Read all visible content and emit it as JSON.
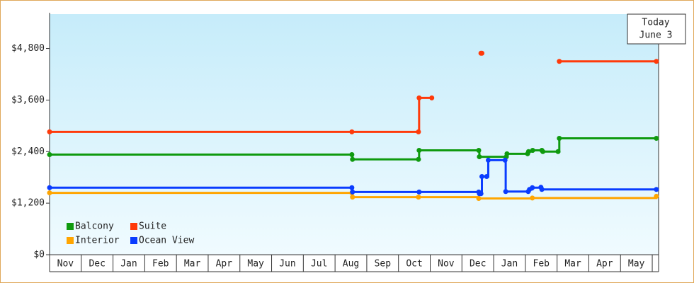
{
  "chart_data": {
    "type": "step-line",
    "categories": [
      "Nov",
      "Dec",
      "Jan",
      "Feb",
      "Mar",
      "Apr",
      "May",
      "Jun",
      "Jul",
      "Aug",
      "Sep",
      "Oct",
      "Nov",
      "Dec",
      "Jan",
      "Feb",
      "Mar",
      "Apr",
      "May"
    ],
    "xlim": [
      0,
      19.2
    ],
    "ylim": [
      0,
      5600
    ],
    "yticks": [
      {
        "value": 0,
        "label": "$0"
      },
      {
        "value": 1200,
        "label": "$1,200"
      },
      {
        "value": 2400,
        "label": "$2,400"
      },
      {
        "value": 3600,
        "label": "$3,600"
      },
      {
        "value": 4800,
        "label": "$4,800"
      }
    ],
    "annotation": [
      "Today",
      "June 3"
    ],
    "legend": "bottom-left",
    "series": [
      {
        "name": "Balcony",
        "color": "#0f9a0f",
        "x": [
          0,
          9.53,
          9.55,
          11.63,
          11.65,
          13.53,
          13.55,
          14.4,
          14.42,
          15.07,
          15.1,
          15.23,
          15.52,
          15.55,
          16.03,
          16.07,
          19.13
        ],
        "values": [
          2330,
          2330,
          2220,
          2220,
          2430,
          2430,
          2280,
          2280,
          2350,
          2350,
          2400,
          2430,
          2430,
          2400,
          2400,
          2710,
          2710
        ]
      },
      {
        "name": "Suite",
        "color": "#ff3a0a",
        "x": [
          0,
          9.53,
          11.63,
          11.65,
          12.05,
          null,
          13.6,
          13.63,
          null,
          16.07,
          19.13
        ],
        "values": [
          2860,
          2860,
          2860,
          3650,
          3650,
          null,
          4690,
          4690,
          null,
          4500,
          4500
        ]
      },
      {
        "name": "Interior",
        "color": "#ffa500",
        "x": [
          0,
          9.53,
          9.55,
          11.63,
          13.53,
          15.22,
          19.13
        ],
        "values": [
          1440,
          1440,
          1340,
          1340,
          1310,
          1320,
          1360
        ]
      },
      {
        "name": "Ocean View",
        "color": "#0a3cff",
        "x": [
          0,
          9.53,
          9.55,
          11.65,
          13.53,
          13.55,
          13.6,
          13.63,
          13.78,
          13.83,
          14.36,
          14.38,
          15.09,
          15.13,
          15.22,
          15.49,
          15.52,
          19.13
        ],
        "values": [
          1560,
          1560,
          1460,
          1460,
          1460,
          1420,
          1420,
          1820,
          1820,
          2200,
          2200,
          1470,
          1470,
          1520,
          1560,
          1570,
          1520,
          1520
        ]
      }
    ]
  }
}
